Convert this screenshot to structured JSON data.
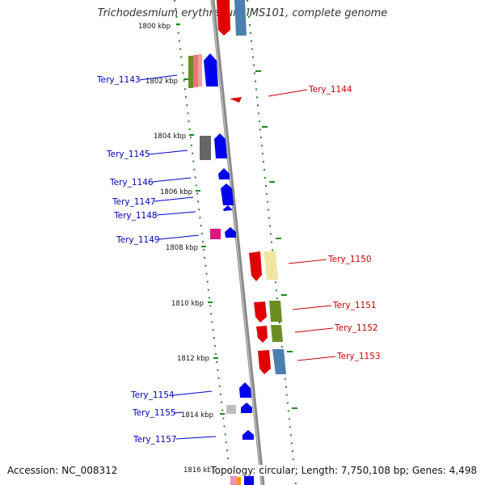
{
  "title": "Trichodesmium erythraeum IMS101, complete genome",
  "footer": {
    "accession": "Accession: NC_008312",
    "topology": "Topology: circular; Length: 7,750,108 bp; Genes: 4,498"
  },
  "colors": {
    "backbone": "#8a8a8a",
    "dots": "#1f8a1f",
    "label_forward": "#0000bb",
    "label_reverse": "#cc0000"
  },
  "ticks": [
    "1800 kbp",
    "1802 kbp",
    "1804 kbp",
    "1806 kbp",
    "1808 kbp",
    "1810 kbp",
    "1812 kbp",
    "1814 kbp",
    "1816 kbp"
  ],
  "forward_labels": [
    "Tery_1143",
    "Tery_1145",
    "Tery_1146",
    "Tery_1147",
    "Tery_1148",
    "Tery_1149",
    "Tery_1154",
    "Tery_1155",
    "Tery_1157"
  ],
  "reverse_labels": [
    "Tery_1144",
    "Tery_1150",
    "Tery_1151",
    "Tery_1152",
    "Tery_1153"
  ]
}
